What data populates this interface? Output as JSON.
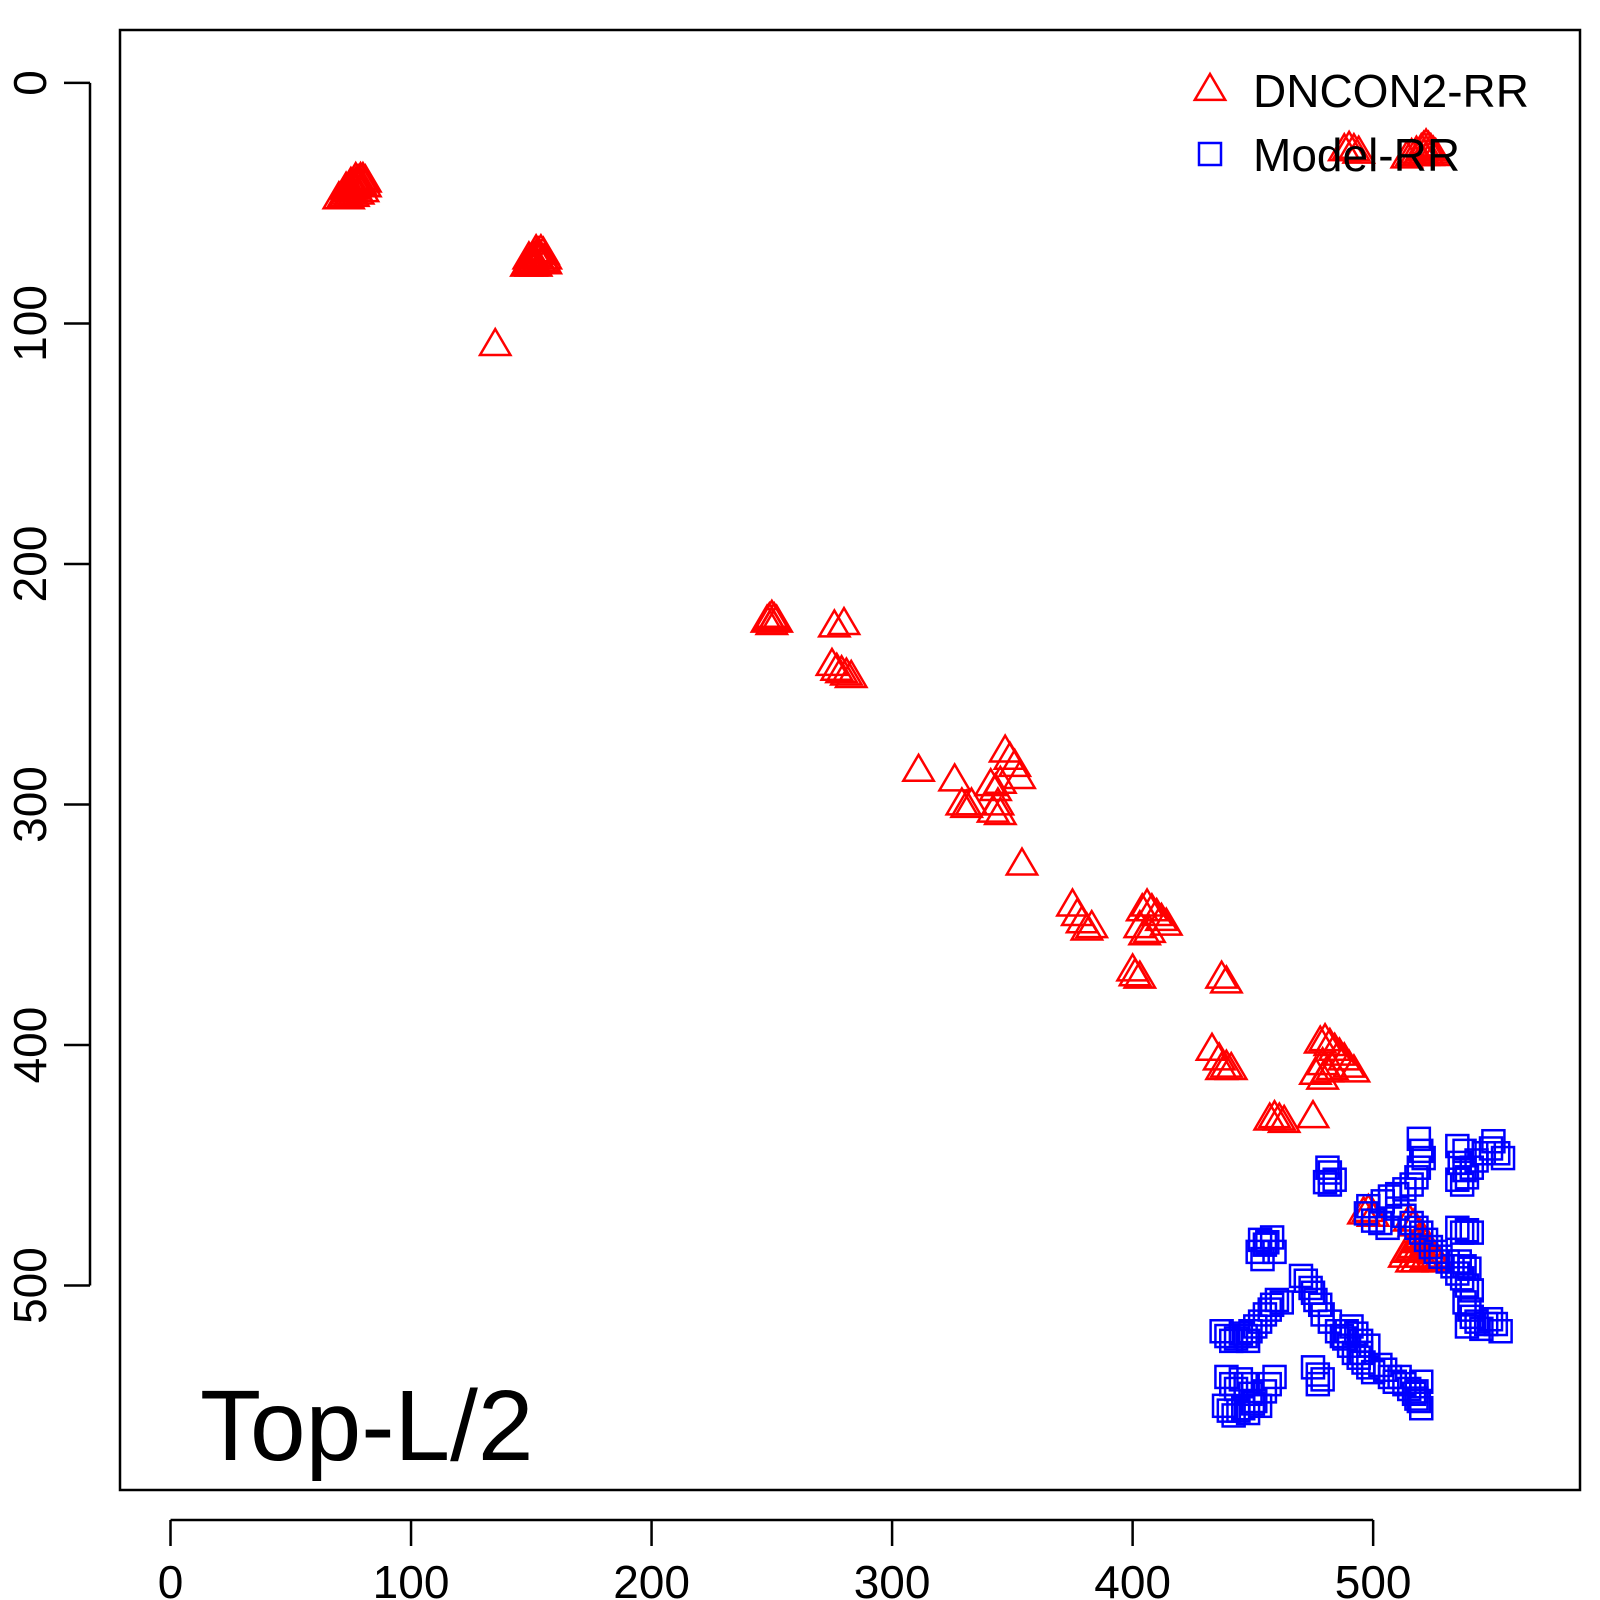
{
  "chart_data": {
    "type": "scatter",
    "title": "",
    "annotation": "Top-L/2",
    "xlabel": "",
    "ylabel": "",
    "xlim": [
      -21,
      586
    ],
    "ylim": [
      585,
      -22
    ],
    "y_reversed": true,
    "x_ticks": [
      0,
      100,
      200,
      300,
      400,
      500
    ],
    "y_ticks": [
      0,
      100,
      200,
      300,
      400,
      500
    ],
    "x_tick_labels": [
      "0",
      "100",
      "200",
      "300",
      "400",
      "500"
    ],
    "y_tick_labels": [
      "0",
      "100",
      "200",
      "300",
      "400",
      "500"
    ],
    "grid": false,
    "legend_position": "top-right",
    "series": [
      {
        "name": "DNCON2-RR",
        "color": "#ff0000",
        "marker": "triangle",
        "points": [
          [
            70,
            48
          ],
          [
            72,
            47
          ],
          [
            73,
            46
          ],
          [
            74,
            45
          ],
          [
            75,
            44
          ],
          [
            76,
            43
          ],
          [
            77,
            42
          ],
          [
            78,
            41
          ],
          [
            79,
            40
          ],
          [
            80,
            40
          ],
          [
            81,
            41
          ],
          [
            81,
            43
          ],
          [
            80,
            45
          ],
          [
            78,
            46
          ],
          [
            76,
            47
          ],
          [
            74,
            48
          ],
          [
            72,
            48
          ],
          [
            75,
            46
          ],
          [
            77,
            44
          ],
          [
            79,
            42
          ],
          [
            73,
            44
          ],
          [
            75,
            42
          ],
          [
            77,
            40
          ],
          [
            78,
            43
          ],
          [
            148,
            76
          ],
          [
            149,
            75
          ],
          [
            150,
            74
          ],
          [
            151,
            73
          ],
          [
            152,
            72
          ],
          [
            153,
            71
          ],
          [
            154,
            70
          ],
          [
            155,
            71
          ],
          [
            156,
            73
          ],
          [
            156,
            75
          ],
          [
            154,
            75
          ],
          [
            152,
            76
          ],
          [
            150,
            76
          ],
          [
            151,
            74
          ],
          [
            153,
            73
          ],
          [
            155,
            74
          ],
          [
            149,
            73
          ],
          [
            152,
            70
          ],
          [
            135,
            109
          ],
          [
            488,
            28
          ],
          [
            490,
            27
          ],
          [
            492,
            28
          ],
          [
            494,
            29
          ],
          [
            514,
            31
          ],
          [
            516,
            30
          ],
          [
            518,
            29
          ],
          [
            520,
            28
          ],
          [
            521,
            27
          ],
          [
            522,
            26
          ],
          [
            523,
            27
          ],
          [
            524,
            28
          ],
          [
            525,
            29
          ],
          [
            526,
            30
          ],
          [
            519,
            30
          ],
          [
            521,
            30
          ],
          [
            523,
            30
          ],
          [
            248,
            224
          ],
          [
            249,
            223
          ],
          [
            250,
            222
          ],
          [
            251,
            223
          ],
          [
            252,
            224
          ],
          [
            250,
            225
          ],
          [
            276,
            226
          ],
          [
            280,
            225
          ],
          [
            275,
            242
          ],
          [
            277,
            244
          ],
          [
            279,
            245
          ],
          [
            281,
            246
          ],
          [
            283,
            247
          ],
          [
            311,
            286
          ],
          [
            326,
            290
          ],
          [
            329,
            300
          ],
          [
            331,
            301
          ],
          [
            333,
            300
          ],
          [
            347,
            278
          ],
          [
            349,
            281
          ],
          [
            351,
            284
          ],
          [
            353,
            289
          ],
          [
            341,
            292
          ],
          [
            343,
            294
          ],
          [
            345,
            291
          ],
          [
            344,
            300
          ],
          [
            342,
            303
          ],
          [
            345,
            304
          ],
          [
            354,
            325
          ],
          [
            375,
            342
          ],
          [
            377,
            346
          ],
          [
            379,
            349
          ],
          [
            381,
            352
          ],
          [
            383,
            351
          ],
          [
            404,
            344
          ],
          [
            406,
            342
          ],
          [
            408,
            344
          ],
          [
            410,
            346
          ],
          [
            412,
            348
          ],
          [
            414,
            350
          ],
          [
            403,
            351
          ],
          [
            405,
            354
          ],
          [
            407,
            353
          ],
          [
            400,
            369
          ],
          [
            401,
            371
          ],
          [
            403,
            372
          ],
          [
            437,
            372
          ],
          [
            439,
            374
          ],
          [
            433,
            402
          ],
          [
            436,
            406
          ],
          [
            437,
            410
          ],
          [
            439,
            409
          ],
          [
            441,
            410
          ],
          [
            478,
            399
          ],
          [
            480,
            398
          ],
          [
            482,
            400
          ],
          [
            484,
            402
          ],
          [
            486,
            404
          ],
          [
            488,
            406
          ],
          [
            490,
            409
          ],
          [
            492,
            411
          ],
          [
            479,
            408
          ],
          [
            481,
            411
          ],
          [
            483,
            410
          ],
          [
            476,
            412
          ],
          [
            479,
            414
          ],
          [
            457,
            431
          ],
          [
            459,
            430
          ],
          [
            461,
            431
          ],
          [
            463,
            432
          ],
          [
            475,
            430
          ],
          [
            496,
            470
          ],
          [
            498,
            469
          ],
          [
            500,
            471
          ],
          [
            515,
            473
          ],
          [
            517,
            475
          ],
          [
            513,
            488
          ],
          [
            514,
            486
          ],
          [
            516,
            485
          ],
          [
            517,
            484
          ],
          [
            518,
            482
          ],
          [
            519,
            481
          ],
          [
            520,
            480
          ],
          [
            521,
            481
          ],
          [
            522,
            483
          ],
          [
            523,
            484
          ],
          [
            524,
            486
          ],
          [
            525,
            488
          ],
          [
            526,
            489
          ],
          [
            527,
            490
          ],
          [
            522,
            489
          ],
          [
            520,
            488
          ],
          [
            518,
            490
          ],
          [
            516,
            490
          ]
        ]
      },
      {
        "name": "Model-RR",
        "color": "#0000ff",
        "marker": "square",
        "points": [
          [
            519,
            439
          ],
          [
            520,
            444
          ],
          [
            521,
            447
          ],
          [
            519,
            451
          ],
          [
            518,
            455
          ],
          [
            516,
            458
          ],
          [
            513,
            460
          ],
          [
            510,
            462
          ],
          [
            507,
            463
          ],
          [
            504,
            465
          ],
          [
            498,
            467
          ],
          [
            497,
            470
          ],
          [
            500,
            473
          ],
          [
            503,
            474
          ],
          [
            506,
            476
          ],
          [
            535,
            442
          ],
          [
            538,
            444
          ],
          [
            536,
            449
          ],
          [
            538,
            452
          ],
          [
            541,
            451
          ],
          [
            543,
            448
          ],
          [
            546,
            445
          ],
          [
            549,
            443
          ],
          [
            550,
            440
          ],
          [
            552,
            445
          ],
          [
            554,
            447
          ],
          [
            535,
            456
          ],
          [
            537,
            458
          ],
          [
            539,
            455
          ],
          [
            481,
            451
          ],
          [
            482,
            453
          ],
          [
            484,
            456
          ],
          [
            480,
            457
          ],
          [
            482,
            458
          ],
          [
            453,
            481
          ],
          [
            455,
            483
          ],
          [
            452,
            486
          ],
          [
            454,
            489
          ],
          [
            456,
            482
          ],
          [
            458,
            480
          ],
          [
            459,
            486
          ],
          [
            510,
            468
          ],
          [
            513,
            471
          ],
          [
            516,
            474
          ],
          [
            518,
            476
          ],
          [
            520,
            478
          ],
          [
            522,
            481
          ],
          [
            524,
            484
          ],
          [
            526,
            486
          ],
          [
            528,
            488
          ],
          [
            531,
            490
          ],
          [
            533,
            492
          ],
          [
            535,
            495
          ],
          [
            537,
            497
          ],
          [
            539,
            500
          ],
          [
            541,
            502
          ],
          [
            538,
            507
          ],
          [
            540,
            510
          ],
          [
            541,
            513
          ],
          [
            543,
            515
          ],
          [
            545,
            518
          ],
          [
            547,
            516
          ],
          [
            549,
            514
          ],
          [
            551,
            516
          ],
          [
            553,
            519
          ],
          [
            539,
            517
          ],
          [
            535,
            476
          ],
          [
            537,
            478
          ],
          [
            539,
            477
          ],
          [
            541,
            478
          ],
          [
            536,
            490
          ],
          [
            538,
            492
          ],
          [
            540,
            493
          ],
          [
            470,
            496
          ],
          [
            472,
            498
          ],
          [
            474,
            501
          ],
          [
            475,
            503
          ],
          [
            476,
            506
          ],
          [
            478,
            508
          ],
          [
            479,
            512
          ],
          [
            482,
            515
          ],
          [
            485,
            519
          ],
          [
            488,
            522
          ],
          [
            490,
            525
          ],
          [
            492,
            528
          ],
          [
            494,
            530
          ],
          [
            496,
            532
          ],
          [
            498,
            534
          ],
          [
            500,
            536
          ],
          [
            487,
            521
          ],
          [
            489,
            519
          ],
          [
            491,
            517
          ],
          [
            493,
            520
          ],
          [
            495,
            523
          ],
          [
            495,
            528
          ],
          [
            498,
            525
          ],
          [
            475,
            534
          ],
          [
            477,
            537
          ],
          [
            477,
            541
          ],
          [
            479,
            539
          ],
          [
            503,
            533
          ],
          [
            505,
            535
          ],
          [
            507,
            538
          ],
          [
            509,
            540
          ],
          [
            511,
            538
          ],
          [
            513,
            541
          ],
          [
            515,
            543
          ],
          [
            517,
            545
          ],
          [
            519,
            548
          ],
          [
            520,
            551
          ],
          [
            520,
            540
          ],
          [
            518,
            544
          ],
          [
            518,
            547
          ],
          [
            437,
            519
          ],
          [
            439,
            521
          ],
          [
            441,
            523
          ],
          [
            443,
            522
          ],
          [
            445,
            520
          ],
          [
            447,
            521
          ],
          [
            449,
            519
          ],
          [
            451,
            517
          ],
          [
            453,
            515
          ],
          [
            455,
            512
          ],
          [
            457,
            510
          ],
          [
            458,
            508
          ],
          [
            460,
            506
          ],
          [
            462,
            507
          ],
          [
            448,
            523
          ],
          [
            439,
            538
          ],
          [
            441,
            541
          ],
          [
            443,
            543
          ],
          [
            445,
            539
          ],
          [
            447,
            541
          ],
          [
            449,
            545
          ],
          [
            451,
            548
          ],
          [
            453,
            550
          ],
          [
            455,
            544
          ],
          [
            457,
            541
          ],
          [
            459,
            538
          ],
          [
            438,
            550
          ],
          [
            440,
            552
          ],
          [
            442,
            554
          ],
          [
            444,
            552
          ],
          [
            446,
            551
          ],
          [
            448,
            553
          ],
          [
            450,
            549
          ]
        ]
      }
    ]
  }
}
